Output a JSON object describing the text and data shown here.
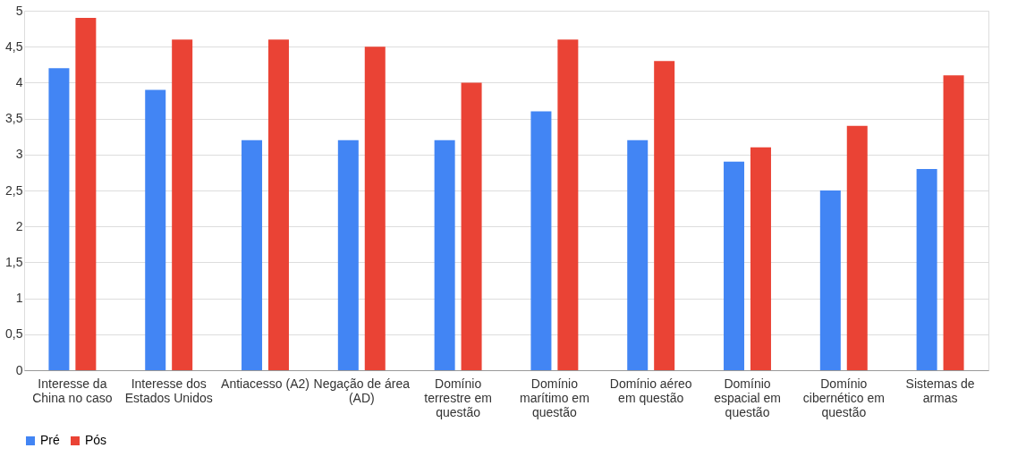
{
  "chart_data": {
    "type": "bar",
    "categories": [
      "Interesse da China no caso",
      "Interesse dos Estados Unidos",
      "Antiacesso (A2)",
      "Negação de área (AD)",
      "Domínio terrestre em questão",
      "Domínio marítimo em questão",
      "Domínio aéreo em questão",
      "Domínio espacial em questão",
      "Domínio cibernético em questão",
      "Sistemas de armas"
    ],
    "series": [
      {
        "name": "Pré",
        "color": "#4285f4",
        "values": [
          4.2,
          3.9,
          3.2,
          3.2,
          3.2,
          3.6,
          3.2,
          2.9,
          2.5,
          2.8
        ]
      },
      {
        "name": "Pós",
        "color": "#ea4335",
        "values": [
          4.9,
          4.6,
          4.6,
          4.5,
          4.0,
          4.6,
          4.3,
          3.1,
          3.4,
          4.1
        ]
      }
    ],
    "ylim": [
      0,
      5
    ],
    "yticks": [
      0,
      {
        "value": 0.5,
        "label": "0,5"
      },
      1,
      {
        "value": 1.5,
        "label": "1,5"
      },
      2,
      {
        "value": 2.5,
        "label": "2,5"
      },
      3,
      {
        "value": 3.5,
        "label": "3,5"
      },
      4,
      {
        "value": 4.5,
        "label": "4,5"
      },
      5
    ],
    "grid": "y",
    "legend": "bottom"
  }
}
